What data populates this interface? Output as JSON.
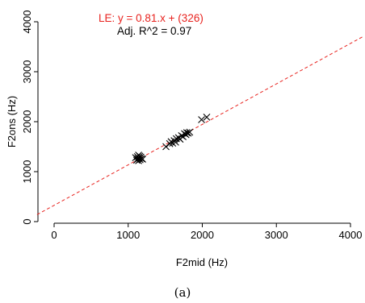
{
  "chart_data": {
    "type": "scatter",
    "xlabel": "F2mid (Hz)",
    "ylabel": "F2ons (Hz)",
    "xlim": [
      0,
      4000
    ],
    "ylim": [
      0,
      4000
    ],
    "xticks": [
      0,
      1000,
      2000,
      3000,
      4000
    ],
    "yticks": [
      0,
      1000,
      2000,
      3000,
      4000
    ],
    "grid": false,
    "marker": "x",
    "marker_color": "#000000",
    "points": [
      [
        1100,
        1280
      ],
      [
        1115,
        1230
      ],
      [
        1125,
        1300
      ],
      [
        1130,
        1260
      ],
      [
        1140,
        1220
      ],
      [
        1150,
        1270
      ],
      [
        1155,
        1310
      ],
      [
        1160,
        1240
      ],
      [
        1170,
        1290
      ],
      [
        1180,
        1260
      ],
      [
        1195,
        1250
      ],
      [
        1140,
        1330
      ],
      [
        1510,
        1500
      ],
      [
        1560,
        1560
      ],
      [
        1580,
        1600
      ],
      [
        1600,
        1570
      ],
      [
        1620,
        1620
      ],
      [
        1640,
        1590
      ],
      [
        1650,
        1660
      ],
      [
        1680,
        1680
      ],
      [
        1700,
        1650
      ],
      [
        1720,
        1720
      ],
      [
        1740,
        1700
      ],
      [
        1760,
        1760
      ],
      [
        1780,
        1740
      ],
      [
        1790,
        1780
      ],
      [
        1810,
        1770
      ],
      [
        1830,
        1790
      ],
      [
        1990,
        2040
      ],
      [
        2060,
        2090
      ]
    ],
    "fit_line": {
      "slope": 0.81,
      "intercept": 326,
      "color": "#e8231f",
      "style": "dashed"
    },
    "annotations": [
      {
        "text": "LE: y = 0.81.x + (326)",
        "color": "#e8231f"
      },
      {
        "text": "Adj. R^2 = 0.97",
        "color": "#000000"
      }
    ]
  },
  "caption": "(a)"
}
